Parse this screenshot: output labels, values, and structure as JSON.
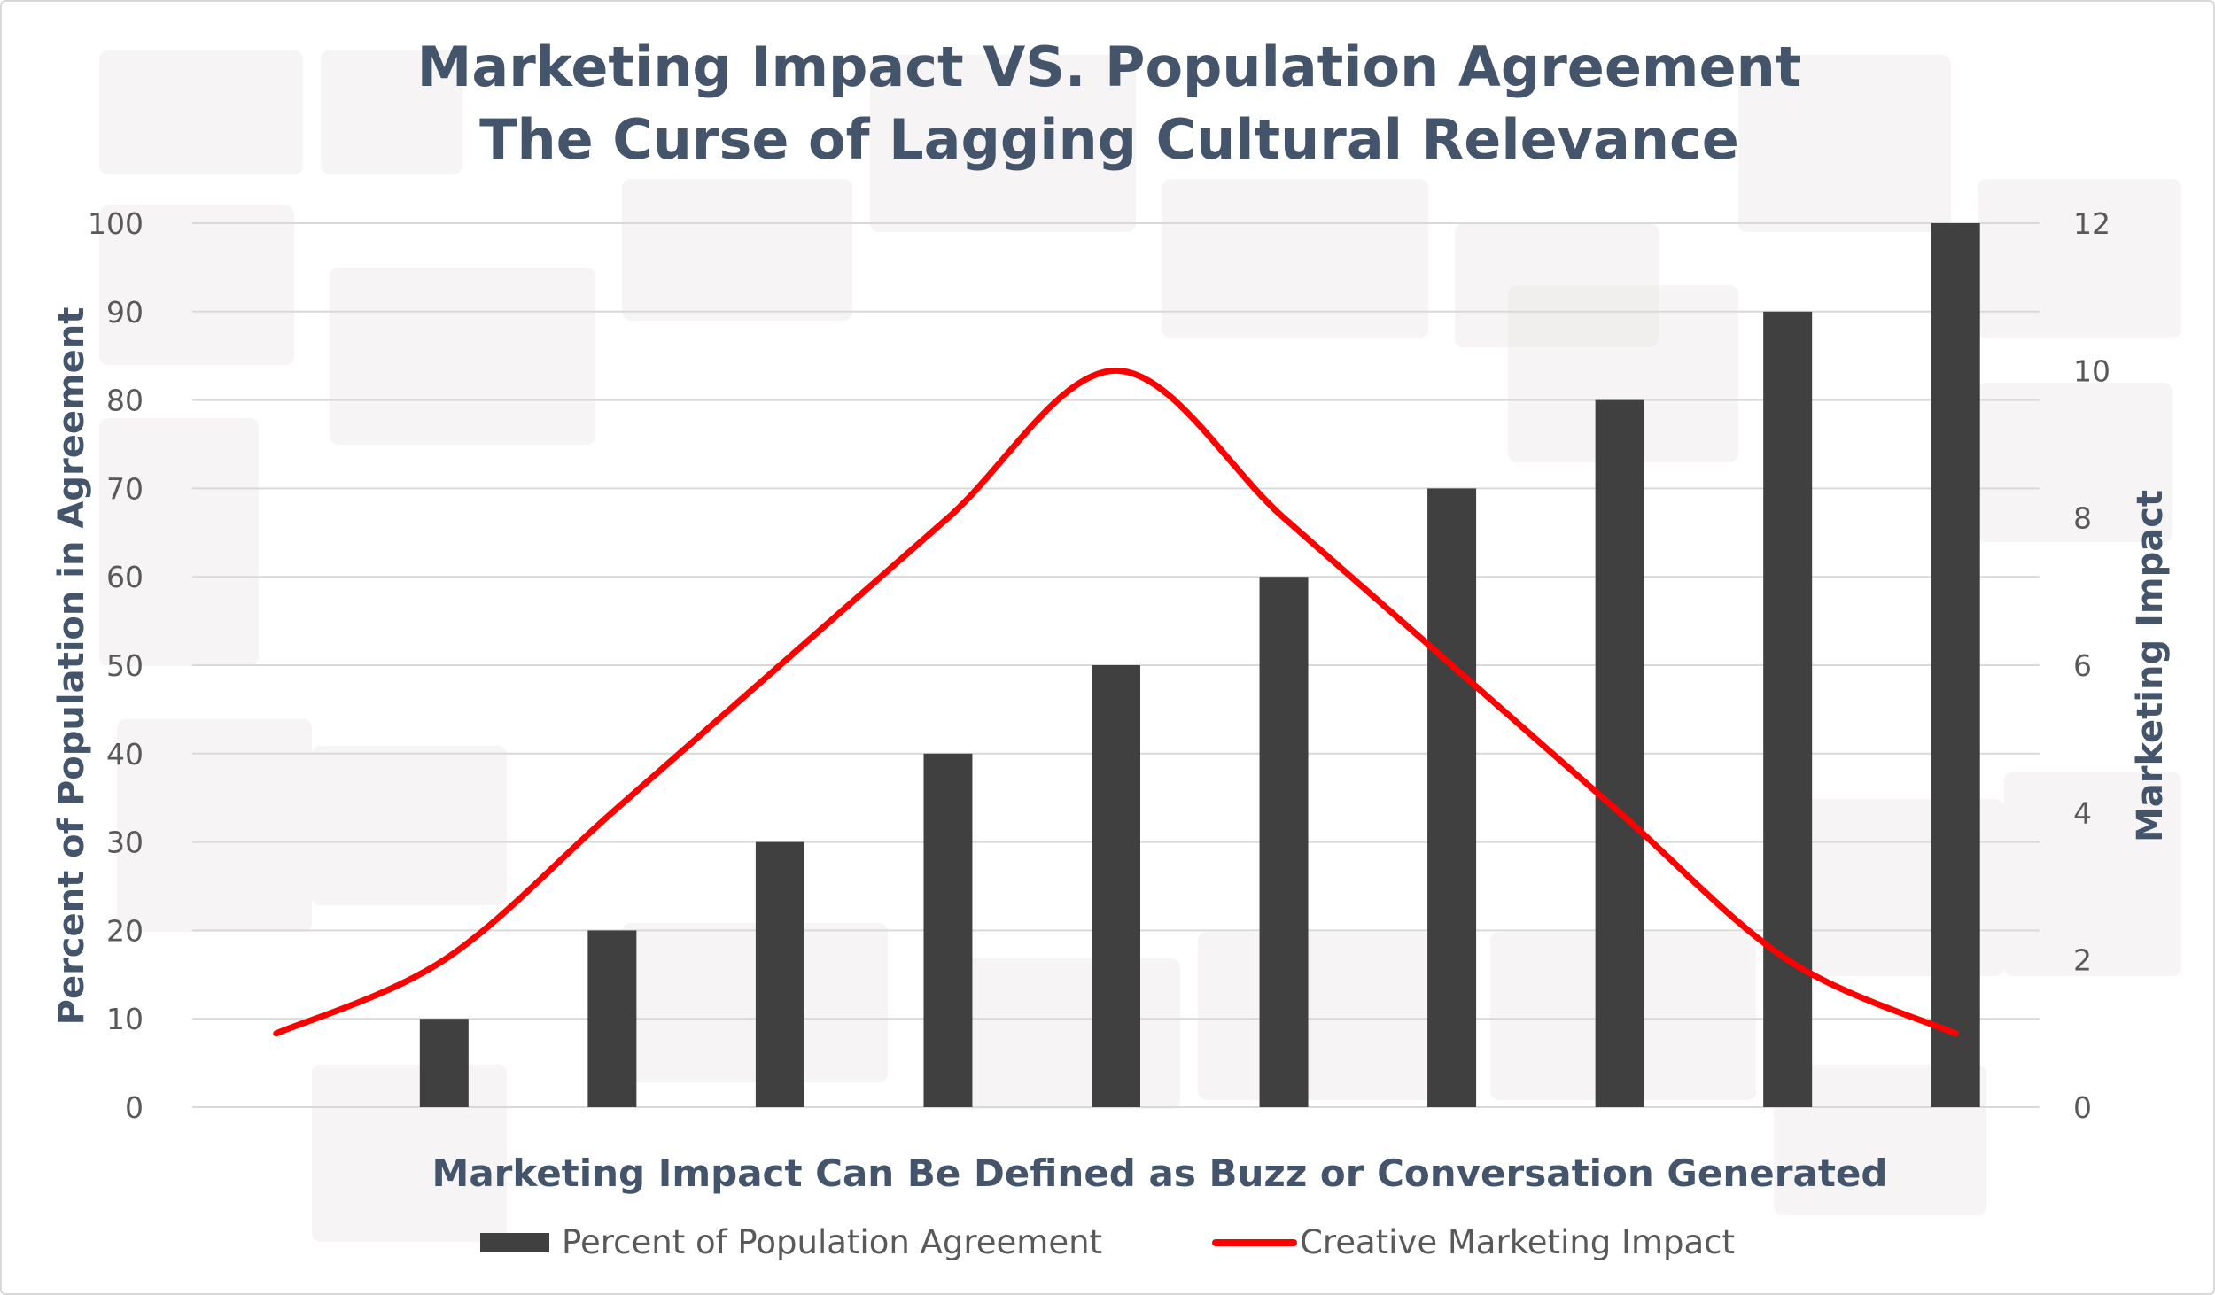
{
  "chart_data": {
    "type": "bar",
    "title_lines": [
      "Marketing Impact VS. Population Agreement",
      "The Curse of Lagging Cultural Relevance"
    ],
    "xlabel": "Marketing Impact Can Be Defined as Buzz or Conversation Generated",
    "ylabel": "Percent of Population in Agreement",
    "y2label": "Marketing Impact",
    "ylim": [
      0,
      100
    ],
    "y2lim": [
      0,
      12
    ],
    "yticks": [
      "0",
      "10",
      "20",
      "30",
      "40",
      "50",
      "60",
      "70",
      "80",
      "90",
      "100"
    ],
    "y2ticks": [
      "0",
      "2",
      "4",
      "6",
      "8",
      "10",
      "12"
    ],
    "grid": true,
    "legend_position": "bottom",
    "series": [
      {
        "name": "Percent of Population Agreement",
        "type": "bar",
        "color": "#404040",
        "axis": "left",
        "values": [
          0,
          10,
          20,
          30,
          40,
          50,
          60,
          70,
          80,
          90,
          100
        ]
      },
      {
        "name": "Creative Marketing Impact",
        "type": "line",
        "color": "#ff0000",
        "axis": "right",
        "values": [
          1,
          2,
          4,
          6,
          8,
          10,
          8,
          6,
          4,
          2,
          1
        ]
      }
    ]
  }
}
